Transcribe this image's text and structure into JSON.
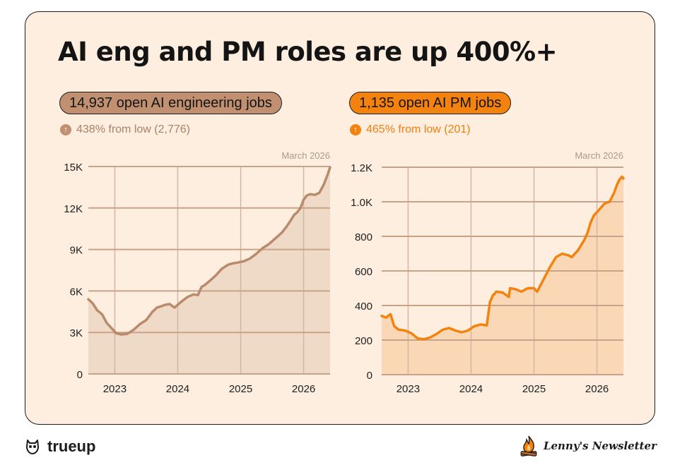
{
  "title": "AI eng and PM roles are up 400%+",
  "panels": [
    {
      "pill": "14,937 open AI engineering jobs",
      "stat": "438% from low (2,776)",
      "stat_icon": "arrow-up-icon",
      "color": "#b98a6b",
      "pill_color": "#c09071"
    },
    {
      "pill": "1,135 open AI PM jobs",
      "stat": "465% from low (201)",
      "stat_icon": "arrow-up-icon",
      "color": "#f4820f",
      "pill_color": "#f4820f"
    }
  ],
  "chart_data": [
    {
      "type": "area",
      "title": "14,937 open AI engineering jobs",
      "annotation": "March 2026",
      "xticks": [
        "2023",
        "2024",
        "2025",
        "2026"
      ],
      "xtick_values": [
        2023.0,
        2024.0,
        2025.0,
        2026.0
      ],
      "yticks": [
        "0",
        "3K",
        "6K",
        "9K",
        "12K",
        "15K"
      ],
      "ytick_values": [
        0,
        3000,
        6000,
        9000,
        12000,
        15000
      ],
      "xlim": [
        2022.58,
        2026.42
      ],
      "ylim": [
        0,
        15000
      ],
      "grid": true,
      "x": [
        2022.58,
        2022.65,
        2022.72,
        2022.8,
        2022.87,
        2022.95,
        2023.02,
        2023.1,
        2023.2,
        2023.3,
        2023.4,
        2023.5,
        2023.6,
        2023.67,
        2023.74,
        2023.8,
        2023.87,
        2023.95,
        2024.05,
        2024.15,
        2024.25,
        2024.32,
        2024.38,
        2024.42,
        2024.5,
        2024.6,
        2024.7,
        2024.8,
        2024.88,
        2024.95,
        2025.05,
        2025.15,
        2025.25,
        2025.35,
        2025.45,
        2025.55,
        2025.65,
        2025.72,
        2025.78,
        2025.85,
        2025.9,
        2025.95,
        2026.0,
        2026.05,
        2026.1,
        2026.18,
        2026.25,
        2026.32,
        2026.38,
        2026.42
      ],
      "y": [
        5400,
        5100,
        4600,
        4300,
        3700,
        3300,
        2950,
        2850,
        2900,
        3200,
        3600,
        3900,
        4500,
        4800,
        4900,
        5000,
        5050,
        4800,
        5200,
        5550,
        5750,
        5700,
        6300,
        6400,
        6700,
        7100,
        7600,
        7900,
        8000,
        8050,
        8150,
        8350,
        8700,
        9100,
        9400,
        9800,
        10200,
        10600,
        11000,
        11500,
        11700,
        12000,
        12600,
        12900,
        13000,
        12950,
        13100,
        13700,
        14400,
        14937
      ]
    },
    {
      "type": "area",
      "title": "1,135 open AI PM jobs",
      "annotation": "March 2026",
      "xticks": [
        "2023",
        "2024",
        "2025",
        "2026"
      ],
      "xtick_values": [
        2023.0,
        2024.0,
        2025.0,
        2026.0
      ],
      "yticks": [
        "0",
        "200",
        "400",
        "600",
        "800",
        "1.0K",
        "1.2K"
      ],
      "ytick_values": [
        0,
        200,
        400,
        600,
        800,
        1000,
        1200
      ],
      "xlim": [
        2022.58,
        2026.42
      ],
      "ylim": [
        0,
        1200
      ],
      "grid": true,
      "x": [
        2022.58,
        2022.65,
        2022.72,
        2022.78,
        2022.85,
        2022.95,
        2023.05,
        2023.15,
        2023.25,
        2023.35,
        2023.45,
        2023.55,
        2023.65,
        2023.75,
        2023.85,
        2023.95,
        2024.05,
        2024.15,
        2024.25,
        2024.3,
        2024.35,
        2024.38,
        2024.4,
        2024.5,
        2024.6,
        2024.62,
        2024.7,
        2024.8,
        2024.9,
        2025.0,
        2025.05,
        2025.15,
        2025.25,
        2025.35,
        2025.45,
        2025.55,
        2025.6,
        2025.7,
        2025.8,
        2025.85,
        2025.9,
        2025.95,
        2026.05,
        2026.12,
        2026.2,
        2026.27,
        2026.32,
        2026.36,
        2026.4,
        2026.42
      ],
      "y": [
        340,
        330,
        350,
        280,
        260,
        255,
        240,
        210,
        205,
        215,
        235,
        260,
        270,
        255,
        245,
        255,
        280,
        290,
        285,
        420,
        460,
        470,
        480,
        475,
        450,
        500,
        495,
        480,
        500,
        500,
        480,
        550,
        620,
        680,
        700,
        690,
        680,
        720,
        780,
        820,
        880,
        920,
        960,
        990,
        1000,
        1050,
        1100,
        1130,
        1145,
        1135
      ]
    }
  ],
  "footer": {
    "logo": "trueup",
    "logo_icon": "owl-icon",
    "newsletter": "Lenny's Newsletter",
    "newsletter_icon": "campfire-icon"
  }
}
